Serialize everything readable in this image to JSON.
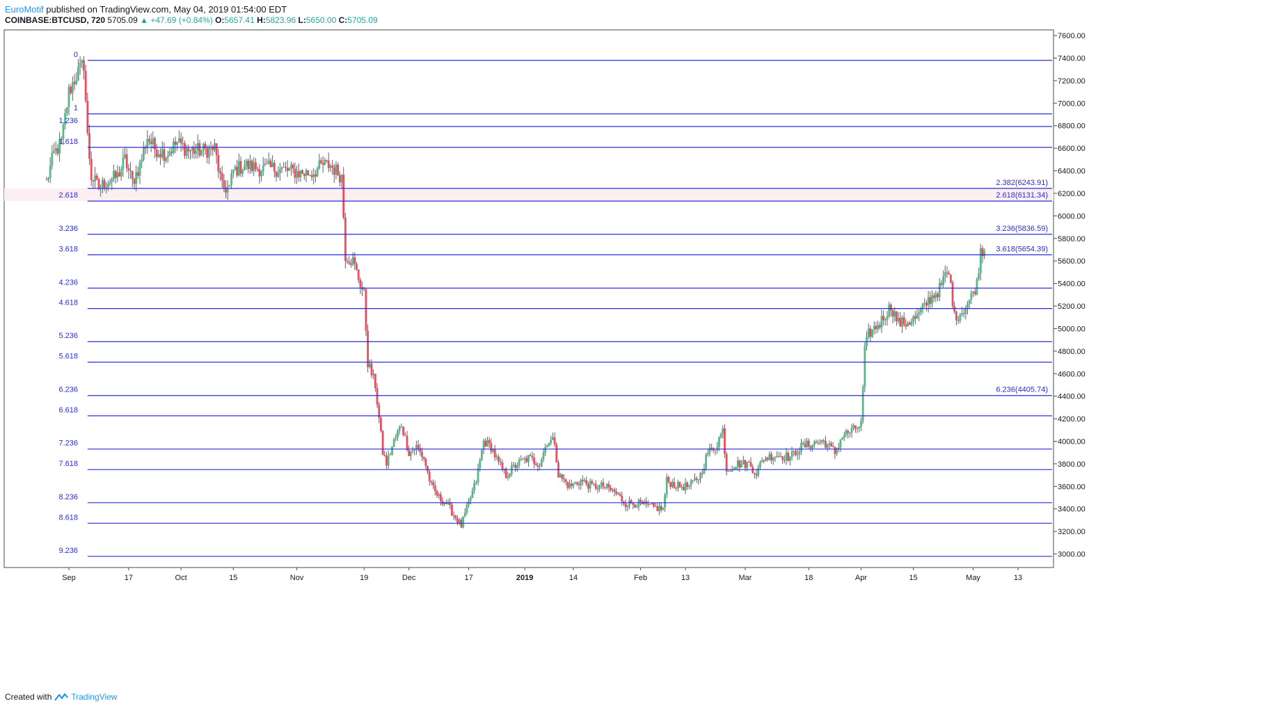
{
  "header": {
    "brand": "EuroMotif",
    "published": "published on TradingView.com, May 04, 2019 01:54:00 EDT",
    "symbol": "COINBASE:BTCUSD, 720",
    "last": "5705.09",
    "change": "▲ +47.69 (+0.84%)",
    "o_label": "O:",
    "o": "5657.41",
    "h_label": "H:",
    "h": "5823.96",
    "l_label": "L:",
    "l": "5650.00",
    "c_label": "C:",
    "c": "5705.09"
  },
  "footer": {
    "created_with": "Created with",
    "brand": "TradingView"
  },
  "colors": {
    "fib_line": "#2a2bd8",
    "fib_text": "#2a2bd8",
    "band_fill": "#fbeff2",
    "bull": "#53b987",
    "bear": "#eb4d5c",
    "wick": "#5d606b"
  },
  "chart_data": {
    "type": "candlestick",
    "ylim": [
      2880,
      7650
    ],
    "y_ticks": [
      "7600.00",
      "7400.00",
      "7200.00",
      "7000.00",
      "6800.00",
      "6600.00",
      "6400.00",
      "6200.00",
      "6000.00",
      "5800.00",
      "5600.00",
      "5400.00",
      "5200.00",
      "5000.00",
      "4800.00",
      "4600.00",
      "4400.00",
      "4200.00",
      "4000.00",
      "3800.00",
      "3600.00",
      "3400.00",
      "3200.00",
      "3000.00"
    ],
    "x_labels": [
      {
        "label": "Sep",
        "x": "2018-09-01",
        "bold": false
      },
      {
        "label": "17",
        "x": "2018-09-17",
        "bold": false
      },
      {
        "label": "Oct",
        "x": "2018-10-01",
        "bold": false
      },
      {
        "label": "15",
        "x": "2018-10-15",
        "bold": false
      },
      {
        "label": "Nov",
        "x": "2018-11-01",
        "bold": false
      },
      {
        "label": "19",
        "x": "2018-11-19",
        "bold": false
      },
      {
        "label": "Dec",
        "x": "2018-12-01",
        "bold": false
      },
      {
        "label": "17",
        "x": "2018-12-17",
        "bold": false
      },
      {
        "label": "2019",
        "x": "2019-01-01",
        "bold": true
      },
      {
        "label": "14",
        "x": "2019-01-14",
        "bold": false
      },
      {
        "label": "Feb",
        "x": "2019-02-01",
        "bold": false
      },
      {
        "label": "13",
        "x": "2019-02-13",
        "bold": false
      },
      {
        "label": "Mar",
        "x": "2019-03-01",
        "bold": false
      },
      {
        "label": "18",
        "x": "2019-03-18",
        "bold": false
      },
      {
        "label": "Apr",
        "x": "2019-04-01",
        "bold": false
      },
      {
        "label": "15",
        "x": "2019-04-15",
        "bold": false
      },
      {
        "label": "May",
        "x": "2019-05-01",
        "bold": false
      },
      {
        "label": "13",
        "x": "2019-05-13",
        "bold": false
      }
    ],
    "fib_levels": [
      {
        "label": "0",
        "price": 7380,
        "right": ""
      },
      {
        "label": "1",
        "price": 6905,
        "right": ""
      },
      {
        "label": "1.236",
        "price": 6793,
        "right": ""
      },
      {
        "label": "1.618",
        "price": 6608,
        "right": ""
      },
      {
        "label": "",
        "price": 6243.91,
        "right": "2.382(6243.91)"
      },
      {
        "label": "2.618",
        "price": 6131.34,
        "right": "2.618(6131.34)"
      },
      {
        "label": "3.236",
        "price": 5836.59,
        "right": "3.236(5836.59)"
      },
      {
        "label": "3.618",
        "price": 5654.39,
        "right": "3.618(5654.39)"
      },
      {
        "label": "4.236",
        "price": 5359,
        "right": ""
      },
      {
        "label": "4.618",
        "price": 5178,
        "right": ""
      },
      {
        "label": "5.236",
        "price": 4884,
        "right": ""
      },
      {
        "label": "5.618",
        "price": 4702,
        "right": ""
      },
      {
        "label": "6.236",
        "price": 4405.74,
        "right": "6.236(4405.74)"
      },
      {
        "label": "6.618",
        "price": 4226,
        "right": ""
      },
      {
        "label": "7.236",
        "price": 3931,
        "right": ""
      },
      {
        "label": "7.618",
        "price": 3749,
        "right": ""
      },
      {
        "label": "8.236",
        "price": 3455,
        "right": ""
      },
      {
        "label": "8.618",
        "price": 3273,
        "right": ""
      },
      {
        "label": "9.236",
        "price": 2979,
        "right": ""
      }
    ],
    "band": [
      6131.34,
      6243.91
    ],
    "close_path": [
      [
        "2018-08-26",
        6300
      ],
      [
        "2018-08-28",
        6550
      ],
      [
        "2018-08-30",
        6650
      ],
      [
        "2018-09-01",
        7100
      ],
      [
        "2018-09-03",
        7250
      ],
      [
        "2018-09-05",
        7350
      ],
      [
        "2018-09-06",
        6700
      ],
      [
        "2018-09-07",
        6350
      ],
      [
        "2018-09-09",
        6250
      ],
      [
        "2018-09-11",
        6300
      ],
      [
        "2018-09-14",
        6350
      ],
      [
        "2018-09-16",
        6500
      ],
      [
        "2018-09-18",
        6300
      ],
      [
        "2018-09-20",
        6450
      ],
      [
        "2018-09-22",
        6700
      ],
      [
        "2018-09-24",
        6600
      ],
      [
        "2018-09-27",
        6550
      ],
      [
        "2018-09-30",
        6650
      ],
      [
        "2018-10-03",
        6580
      ],
      [
        "2018-10-07",
        6580
      ],
      [
        "2018-10-10",
        6600
      ],
      [
        "2018-10-12",
        6250
      ],
      [
        "2018-10-14",
        6250
      ],
      [
        "2018-10-15",
        6400
      ],
      [
        "2018-10-18",
        6450
      ],
      [
        "2018-10-22",
        6420
      ],
      [
        "2018-10-26",
        6420
      ],
      [
        "2018-10-30",
        6400
      ],
      [
        "2018-11-02",
        6380
      ],
      [
        "2018-11-05",
        6380
      ],
      [
        "2018-11-08",
        6450
      ],
      [
        "2018-11-10",
        6450
      ],
      [
        "2018-11-13",
        6350
      ],
      [
        "2018-11-14",
        5650
      ],
      [
        "2018-11-16",
        5600
      ],
      [
        "2018-11-19",
        5300
      ],
      [
        "2018-11-20",
        4700
      ],
      [
        "2018-11-22",
        4500
      ],
      [
        "2018-11-24",
        3900
      ],
      [
        "2018-11-25",
        3800
      ],
      [
        "2018-11-27",
        4000
      ],
      [
        "2018-11-29",
        4150
      ],
      [
        "2018-12-01",
        3900
      ],
      [
        "2018-12-03",
        3950
      ],
      [
        "2018-12-05",
        3850
      ],
      [
        "2018-12-07",
        3600
      ],
      [
        "2018-12-09",
        3500
      ],
      [
        "2018-12-11",
        3450
      ],
      [
        "2018-12-13",
        3350
      ],
      [
        "2018-12-15",
        3250
      ],
      [
        "2018-12-17",
        3450
      ],
      [
        "2018-12-19",
        3650
      ],
      [
        "2018-12-21",
        4000
      ],
      [
        "2018-12-23",
        3950
      ],
      [
        "2018-12-25",
        3800
      ],
      [
        "2018-12-27",
        3700
      ],
      [
        "2018-12-30",
        3800
      ],
      [
        "2019-01-02",
        3850
      ],
      [
        "2019-01-05",
        3800
      ],
      [
        "2019-01-07",
        4000
      ],
      [
        "2019-01-09",
        4000
      ],
      [
        "2019-01-10",
        3700
      ],
      [
        "2019-01-13",
        3600
      ],
      [
        "2019-01-16",
        3650
      ],
      [
        "2019-01-19",
        3600
      ],
      [
        "2019-01-22",
        3600
      ],
      [
        "2019-01-25",
        3550
      ],
      [
        "2019-01-28",
        3450
      ],
      [
        "2019-01-31",
        3450
      ],
      [
        "2019-02-03",
        3420
      ],
      [
        "2019-02-07",
        3400
      ],
      [
        "2019-02-08",
        3650
      ],
      [
        "2019-02-11",
        3600
      ],
      [
        "2019-02-14",
        3600
      ],
      [
        "2019-02-17",
        3700
      ],
      [
        "2019-02-19",
        3900
      ],
      [
        "2019-02-21",
        3950
      ],
      [
        "2019-02-23",
        4100
      ],
      [
        "2019-02-24",
        3750
      ],
      [
        "2019-02-27",
        3800
      ],
      [
        "2019-03-02",
        3800
      ],
      [
        "2019-03-04",
        3720
      ],
      [
        "2019-03-06",
        3850
      ],
      [
        "2019-03-09",
        3880
      ],
      [
        "2019-03-13",
        3860
      ],
      [
        "2019-03-16",
        3950
      ],
      [
        "2019-03-19",
        3980
      ],
      [
        "2019-03-22",
        4000
      ],
      [
        "2019-03-25",
        3900
      ],
      [
        "2019-03-27",
        4050
      ],
      [
        "2019-03-30",
        4100
      ],
      [
        "2019-04-01",
        4150
      ],
      [
        "2019-04-02",
        4800
      ],
      [
        "2019-04-03",
        4950
      ],
      [
        "2019-04-06",
        5050
      ],
      [
        "2019-04-09",
        5200
      ],
      [
        "2019-04-11",
        5050
      ],
      [
        "2019-04-13",
        5050
      ],
      [
        "2019-04-16",
        5100
      ],
      [
        "2019-04-19",
        5250
      ],
      [
        "2019-04-22",
        5350
      ],
      [
        "2019-04-24",
        5500
      ],
      [
        "2019-04-25",
        5400
      ],
      [
        "2019-04-26",
        5100
      ],
      [
        "2019-04-28",
        5150
      ],
      [
        "2019-04-30",
        5250
      ],
      [
        "2019-05-02",
        5400
      ],
      [
        "2019-05-03",
        5700
      ],
      [
        "2019-05-04",
        5705
      ]
    ]
  }
}
